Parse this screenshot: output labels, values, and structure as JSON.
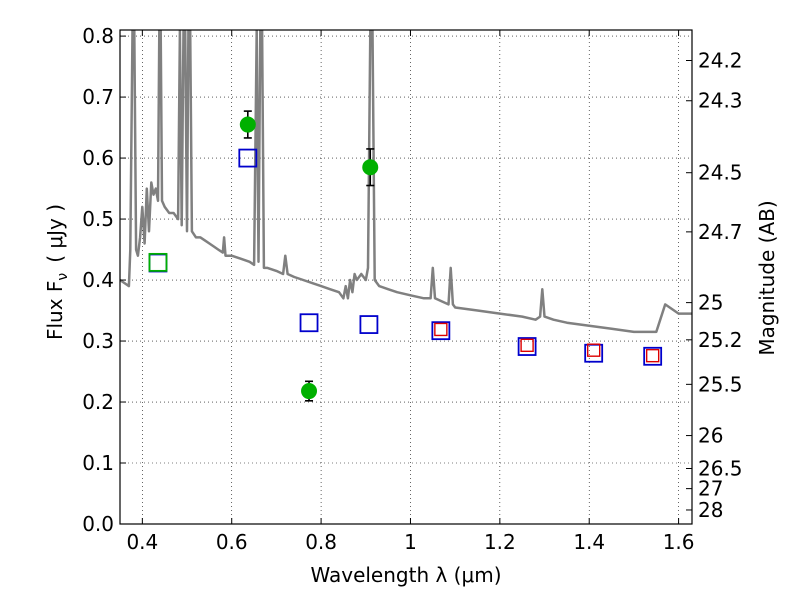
{
  "chart_data": {
    "type": "scatter",
    "xlabel": "Wavelength  λ (μm)",
    "ylabel": "Flux  F",
    "ylabel_sub": "ν",
    "ylabel_unit": "( μJy )",
    "y2label": "Magnitude (AB)",
    "xlim": [
      0.35,
      1.63
    ],
    "ylim": [
      0.0,
      0.81
    ],
    "grid": true,
    "x_ticks": [
      0.4,
      0.6,
      0.8,
      1.0,
      1.2,
      1.4,
      1.6
    ],
    "x_tick_labels": [
      "0.4",
      "0.6",
      "0.8",
      "1",
      "1.2",
      "1.4",
      "1.6"
    ],
    "y_ticks": [
      0.0,
      0.1,
      0.2,
      0.3,
      0.4,
      0.5,
      0.6,
      0.7,
      0.8
    ],
    "y_tick_labels": [
      "0.0",
      "0.1",
      "0.2",
      "0.3",
      "0.4",
      "0.5",
      "0.6",
      "0.7",
      "0.8"
    ],
    "y2_ticks": [
      {
        "label": "24.2",
        "flux": 0.76
      },
      {
        "label": "24.3",
        "flux": 0.694
      },
      {
        "label": "24.5",
        "flux": 0.576
      },
      {
        "label": "24.7",
        "flux": 0.479
      },
      {
        "label": "25",
        "flux": 0.363
      },
      {
        "label": "25.2",
        "flux": 0.302
      },
      {
        "label": "25.5",
        "flux": 0.229
      },
      {
        "label": "26",
        "flux": 0.145
      },
      {
        "label": "26.5",
        "flux": 0.091
      },
      {
        "label": "27",
        "flux": 0.058
      },
      {
        "label": "28",
        "flux": 0.023
      }
    ],
    "series": [
      {
        "kind": "errorbar",
        "color": "#00b000",
        "points": [
          {
            "x": 0.636,
            "y": 0.655,
            "err": 0.022
          },
          {
            "x": 0.773,
            "y": 0.218,
            "err": 0.016
          },
          {
            "x": 0.91,
            "y": 0.585,
            "err": 0.03
          }
        ]
      },
      {
        "kind": "open-square-blue",
        "color": "#0000cc",
        "points": [
          {
            "x": 0.435,
            "y": 0.428
          },
          {
            "x": 0.636,
            "y": 0.6
          },
          {
            "x": 0.773,
            "y": 0.33
          },
          {
            "x": 0.907,
            "y": 0.327
          },
          {
            "x": 1.068,
            "y": 0.317
          },
          {
            "x": 1.261,
            "y": 0.291
          },
          {
            "x": 1.41,
            "y": 0.28
          },
          {
            "x": 1.542,
            "y": 0.275
          }
        ]
      },
      {
        "kind": "open-square-red",
        "color": "#dd0000",
        "points": [
          {
            "x": 1.068,
            "y": 0.319
          },
          {
            "x": 1.261,
            "y": 0.293
          },
          {
            "x": 1.41,
            "y": 0.285
          },
          {
            "x": 1.542,
            "y": 0.276
          }
        ]
      },
      {
        "kind": "open-square-green",
        "color": "#00b000",
        "points": [
          {
            "x": 0.435,
            "y": 0.429
          }
        ]
      },
      {
        "kind": "line",
        "color": "#808080",
        "points": [
          [
            0.35,
            0.4
          ],
          [
            0.37,
            0.39
          ],
          [
            0.373,
            0.45
          ],
          [
            0.378,
            0.81
          ],
          [
            0.382,
            0.81
          ],
          [
            0.386,
            0.45
          ],
          [
            0.39,
            0.44
          ],
          [
            0.395,
            0.47
          ],
          [
            0.4,
            0.52
          ],
          [
            0.405,
            0.46
          ],
          [
            0.41,
            0.55
          ],
          [
            0.415,
            0.48
          ],
          [
            0.42,
            0.56
          ],
          [
            0.425,
            0.54
          ],
          [
            0.43,
            0.55
          ],
          [
            0.435,
            0.53
          ],
          [
            0.438,
            0.81
          ],
          [
            0.441,
            0.81
          ],
          [
            0.444,
            0.53
          ],
          [
            0.45,
            0.52
          ],
          [
            0.46,
            0.51
          ],
          [
            0.47,
            0.51
          ],
          [
            0.48,
            0.5
          ],
          [
            0.484,
            0.81
          ],
          [
            0.488,
            0.49
          ],
          [
            0.492,
            0.81
          ],
          [
            0.496,
            0.81
          ],
          [
            0.5,
            0.48
          ],
          [
            0.503,
            0.81
          ],
          [
            0.507,
            0.81
          ],
          [
            0.511,
            0.48
          ],
          [
            0.52,
            0.47
          ],
          [
            0.53,
            0.47
          ],
          [
            0.54,
            0.465
          ],
          [
            0.55,
            0.46
          ],
          [
            0.56,
            0.455
          ],
          [
            0.57,
            0.45
          ],
          [
            0.58,
            0.445
          ],
          [
            0.583,
            0.47
          ],
          [
            0.586,
            0.44
          ],
          [
            0.6,
            0.44
          ],
          [
            0.62,
            0.435
          ],
          [
            0.64,
            0.43
          ],
          [
            0.65,
            0.425
          ],
          [
            0.656,
            0.81
          ],
          [
            0.66,
            0.43
          ],
          [
            0.664,
            0.81
          ],
          [
            0.668,
            0.81
          ],
          [
            0.672,
            0.42
          ],
          [
            0.68,
            0.42
          ],
          [
            0.7,
            0.415
          ],
          [
            0.715,
            0.41
          ],
          [
            0.72,
            0.44
          ],
          [
            0.725,
            0.41
          ],
          [
            0.74,
            0.405
          ],
          [
            0.76,
            0.4
          ],
          [
            0.78,
            0.395
          ],
          [
            0.8,
            0.39
          ],
          [
            0.82,
            0.385
          ],
          [
            0.84,
            0.38
          ],
          [
            0.85,
            0.37
          ],
          [
            0.855,
            0.39
          ],
          [
            0.86,
            0.37
          ],
          [
            0.865,
            0.4
          ],
          [
            0.87,
            0.38
          ],
          [
            0.875,
            0.41
          ],
          [
            0.88,
            0.4
          ],
          [
            0.89,
            0.41
          ],
          [
            0.9,
            0.4
          ],
          [
            0.905,
            0.42
          ],
          [
            0.91,
            0.81
          ],
          [
            0.915,
            0.81
          ],
          [
            0.92,
            0.4
          ],
          [
            0.93,
            0.39
          ],
          [
            0.95,
            0.385
          ],
          [
            0.97,
            0.38
          ],
          [
            1.0,
            0.375
          ],
          [
            1.03,
            0.37
          ],
          [
            1.045,
            0.37
          ],
          [
            1.05,
            0.42
          ],
          [
            1.055,
            0.37
          ],
          [
            1.07,
            0.365
          ],
          [
            1.085,
            0.36
          ],
          [
            1.09,
            0.42
          ],
          [
            1.095,
            0.36
          ],
          [
            1.1,
            0.355
          ],
          [
            1.15,
            0.35
          ],
          [
            1.2,
            0.345
          ],
          [
            1.25,
            0.34
          ],
          [
            1.28,
            0.335
          ],
          [
            1.29,
            0.34
          ],
          [
            1.295,
            0.385
          ],
          [
            1.3,
            0.34
          ],
          [
            1.32,
            0.335
          ],
          [
            1.35,
            0.33
          ],
          [
            1.4,
            0.325
          ],
          [
            1.45,
            0.32
          ],
          [
            1.5,
            0.315
          ],
          [
            1.55,
            0.315
          ],
          [
            1.57,
            0.36
          ],
          [
            1.6,
            0.345
          ],
          [
            1.63,
            0.345
          ]
        ]
      }
    ]
  }
}
